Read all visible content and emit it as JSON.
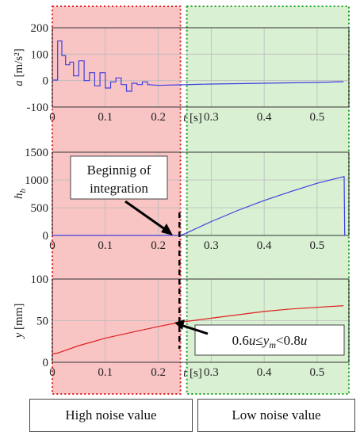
{
  "regions": {
    "high_noise_color": "#f8c4c4",
    "high_noise_border": "#e02020",
    "low_noise_color": "#d9f0d3",
    "low_noise_border": "#1aa01a"
  },
  "footer": {
    "high_label": "High noise value",
    "low_label": "Low noise value"
  },
  "annotations": {
    "beginning_line1": "Beginnig of",
    "beginning_line2": "integration",
    "condition_parts": [
      "0.6",
      "u",
      "≤",
      "y",
      "m",
      "<0.8",
      "u"
    ]
  },
  "chart_data": [
    {
      "type": "line",
      "ylabel": "a [m/s²]",
      "xlabel": "t [s]",
      "xlim": [
        0,
        0.56
      ],
      "ylim": [
        -100,
        200
      ],
      "xticks": [
        "0",
        "0.1",
        "0.2",
        "0.3",
        "0.4",
        "0.5"
      ],
      "yticks": [
        "-100",
        "0",
        "100",
        "200"
      ],
      "grid": true,
      "series": [
        {
          "color": "#4040e0",
          "x": [
            0,
            0.01,
            0.01,
            0.018,
            0.018,
            0.025,
            0.025,
            0.033,
            0.033,
            0.04,
            0.04,
            0.05,
            0.05,
            0.06,
            0.06,
            0.07,
            0.07,
            0.08,
            0.08,
            0.09,
            0.09,
            0.1,
            0.1,
            0.11,
            0.11,
            0.12,
            0.12,
            0.13,
            0.13,
            0.14,
            0.14,
            0.15,
            0.15,
            0.16,
            0.16,
            0.17,
            0.17,
            0.18,
            0.18,
            0.2,
            0.24,
            0.3,
            0.4,
            0.5,
            0.55
          ],
          "y": [
            2,
            2,
            150,
            150,
            95,
            95,
            60,
            60,
            70,
            70,
            18,
            18,
            75,
            75,
            0,
            0,
            30,
            30,
            -20,
            -20,
            30,
            30,
            -28,
            -28,
            -5,
            -5,
            10,
            10,
            -15,
            -15,
            -40,
            -40,
            -10,
            -10,
            -15,
            -15,
            -5,
            -5,
            -15,
            -18,
            -16,
            -13,
            -10,
            -7,
            -4
          ]
        }
      ]
    },
    {
      "type": "line",
      "ylabel": "h_b",
      "xlim": [
        0,
        0.56
      ],
      "ylim": [
        0,
        1500
      ],
      "xticks": [
        "0",
        "0.1",
        "0.2",
        "0.3",
        "0.4",
        "0.5"
      ],
      "yticks": [
        "0",
        "500",
        "1000",
        "1500"
      ],
      "grid": true,
      "series": [
        {
          "color": "#4040e0",
          "x": [
            0,
            0.24,
            0.25,
            0.3,
            0.35,
            0.4,
            0.45,
            0.5,
            0.55,
            0.551,
            0.552
          ],
          "y": [
            0,
            0,
            30,
            250,
            450,
            630,
            790,
            940,
            1060,
            1060,
            0
          ]
        }
      ]
    },
    {
      "type": "line",
      "ylabel": "y [mm]",
      "xlabel": "t [s]",
      "xlim": [
        0,
        0.56
      ],
      "ylim": [
        0,
        100
      ],
      "xticks": [
        "0",
        "0.1",
        "0.2",
        "0.3",
        "0.4",
        "0.5"
      ],
      "yticks": [
        "0",
        "50",
        "100"
      ],
      "grid": true,
      "series": [
        {
          "color": "#e02020",
          "x": [
            0,
            0.01,
            0.05,
            0.1,
            0.15,
            0.2,
            0.24,
            0.3,
            0.35,
            0.4,
            0.45,
            0.5,
            0.55
          ],
          "y": [
            10,
            11,
            20,
            29,
            36,
            43,
            48,
            53,
            57,
            61,
            64,
            66,
            68
          ]
        }
      ]
    }
  ]
}
